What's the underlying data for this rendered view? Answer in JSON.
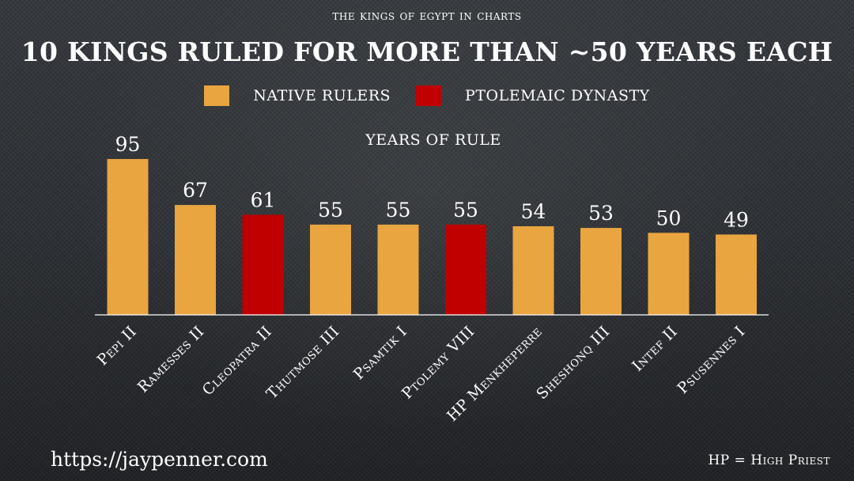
{
  "supertitle": "The kings of egypt in charts",
  "title": "10 KINGS RULED FOR MORE THAN ~50 YEARS EACH",
  "legend": [
    {
      "label": "NATIVE RULERS",
      "color": "#e8a540"
    },
    {
      "label": "PTOLEMAIC DYNASTY",
      "color": "#c00000"
    }
  ],
  "footer": {
    "website": "https://jaypenner.com",
    "note": "HP = High Priest"
  },
  "chart_data": {
    "type": "bar",
    "title": "YEARS OF RULE",
    "xlabel": "",
    "ylabel": "",
    "ylim": [
      0,
      95
    ],
    "grid": false,
    "legend_position": "top",
    "categories": [
      "Pepi II",
      "Ramesses II",
      "Cleopatra II",
      "Thutmose III",
      "Psamtik I",
      "Ptolemy VIII",
      "HP Menkheperre",
      "Sheshonq III",
      "Intef II",
      "Psusennes I"
    ],
    "values": [
      95,
      67,
      61,
      55,
      55,
      55,
      54,
      53,
      50,
      49
    ],
    "groups": [
      "NATIVE RULERS",
      "NATIVE RULERS",
      "PTOLEMAIC DYNASTY",
      "NATIVE RULERS",
      "NATIVE RULERS",
      "PTOLEMAIC DYNASTY",
      "NATIVE RULERS",
      "NATIVE RULERS",
      "NATIVE RULERS",
      "NATIVE RULERS"
    ]
  }
}
